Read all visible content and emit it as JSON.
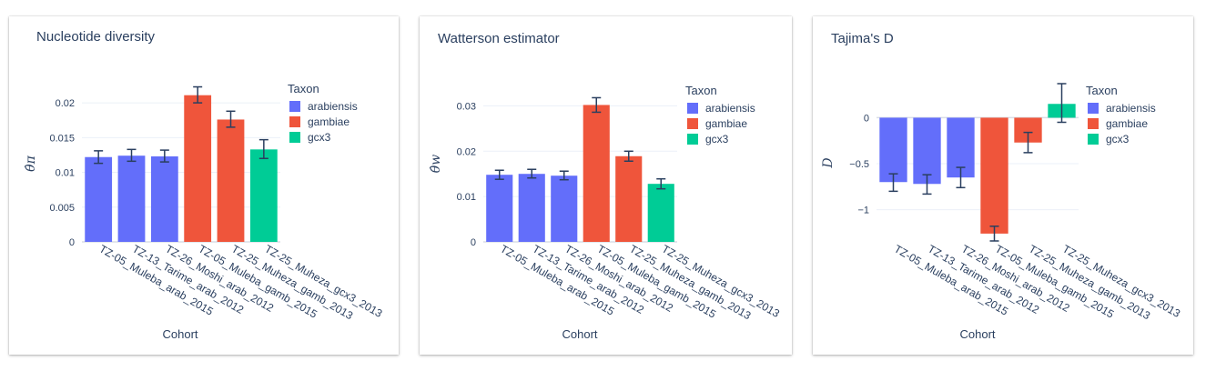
{
  "colors": {
    "arabiensis": "#636efa",
    "gambiae": "#ef553b",
    "gcx3": "#00cc96"
  },
  "categories": [
    "TZ-05_Muleba_arab_2015",
    "TZ-13_Tarime_arab_2012",
    "TZ-26_Moshi_arab_2012",
    "TZ-05_Muleba_gamb_2015",
    "TZ-25_Muheza_gamb_2013",
    "TZ-25_Muheza_gcx3_2013"
  ],
  "taxa": [
    "arabiensis",
    "arabiensis",
    "arabiensis",
    "gambiae",
    "gambiae",
    "gcx3"
  ],
  "legend": {
    "title": "Taxon",
    "items": [
      "arabiensis",
      "gambiae",
      "gcx3"
    ]
  },
  "chart_data": [
    {
      "type": "bar",
      "title": "Nucleotide diversity",
      "xlabel": "Cohort",
      "ylabel": "θ̂π",
      "ylim": [
        0,
        0.0225
      ],
      "yticks": [
        0,
        0.005,
        0.01,
        0.015,
        0.02
      ],
      "ytick_labels": [
        "0",
        "0.005",
        "0.01",
        "0.015",
        "0.02"
      ],
      "values": [
        0.0122,
        0.0124,
        0.0123,
        0.0211,
        0.0176,
        0.0133
      ],
      "err_low": [
        0.0113,
        0.0116,
        0.0115,
        0.02,
        0.0165,
        0.012
      ],
      "err_high": [
        0.0131,
        0.0133,
        0.0132,
        0.0223,
        0.0188,
        0.0147
      ],
      "legend_position": "right"
    },
    {
      "type": "bar",
      "title": "Watterson estimator",
      "xlabel": "Cohort",
      "ylabel": "θ̂w",
      "ylim": [
        0,
        0.0345
      ],
      "yticks": [
        0,
        0.01,
        0.02,
        0.03
      ],
      "ytick_labels": [
        "0",
        "0.01",
        "0.02",
        "0.03"
      ],
      "values": [
        0.0148,
        0.015,
        0.0146,
        0.0302,
        0.0189,
        0.0128
      ],
      "err_low": [
        0.0138,
        0.0141,
        0.0137,
        0.0286,
        0.0178,
        0.0117
      ],
      "err_high": [
        0.0158,
        0.016,
        0.0156,
        0.0318,
        0.02,
        0.0139
      ],
      "legend_position": "right"
    },
    {
      "type": "bar",
      "title": "Tajima's D",
      "xlabel": "Cohort",
      "ylabel": "D",
      "ylim": [
        -1.35,
        0.37
      ],
      "yticks": [
        -1,
        -0.5,
        0
      ],
      "ytick_labels": [
        "−1",
        "−0.5",
        "0"
      ],
      "values": [
        -0.7,
        -0.72,
        -0.65,
        -1.26,
        -0.27,
        0.15
      ],
      "err_low": [
        -0.8,
        -0.83,
        -0.76,
        -1.34,
        -0.38,
        -0.05
      ],
      "err_high": [
        -0.61,
        -0.62,
        -0.54,
        -1.18,
        -0.16,
        0.37
      ],
      "legend_position": "right"
    }
  ]
}
